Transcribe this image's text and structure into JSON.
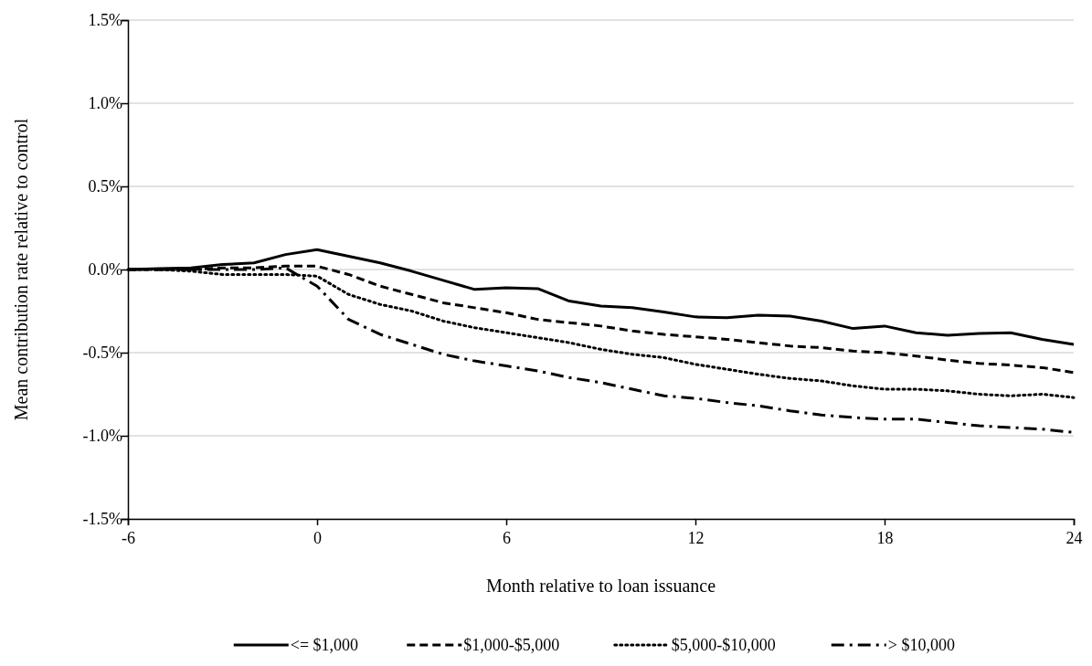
{
  "chart_data": {
    "type": "line",
    "xlabel": "Month relative to loan issuance",
    "ylabel": "Mean contribution rate relative to control",
    "x": [
      -6,
      -5,
      -4,
      -3,
      -2,
      -1,
      0,
      1,
      2,
      3,
      4,
      5,
      6,
      7,
      8,
      9,
      10,
      11,
      12,
      13,
      14,
      15,
      16,
      17,
      18,
      19,
      20,
      21,
      22,
      23,
      24
    ],
    "series": [
      {
        "name": "<= $1,000",
        "color": "#000000",
        "line_style": "solid",
        "values": [
          0,
          0.005,
          0.01,
          0.03,
          0.04,
          0.09,
          0.12,
          0.08,
          0.04,
          -0.01,
          -0.065,
          -0.12,
          -0.11,
          -0.115,
          -0.19,
          -0.22,
          -0.23,
          -0.255,
          -0.285,
          -0.29,
          -0.275,
          -0.28,
          -0.31,
          -0.355,
          -0.34,
          -0.38,
          -0.395,
          -0.385,
          -0.38,
          -0.42,
          -0.45
        ]
      },
      {
        "name": "$1,000-$5,000",
        "color": "#000000",
        "line_style": "dashed",
        "values": [
          0,
          0,
          0,
          0.01,
          0.01,
          0.02,
          0.02,
          -0.03,
          -0.1,
          -0.15,
          -0.2,
          -0.23,
          -0.26,
          -0.3,
          -0.32,
          -0.34,
          -0.37,
          -0.39,
          -0.405,
          -0.42,
          -0.44,
          -0.46,
          -0.47,
          -0.49,
          -0.5,
          -0.52,
          -0.545,
          -0.565,
          -0.575,
          -0.59,
          -0.62
        ]
      },
      {
        "name": "$5,000-$10,000",
        "color": "#000000",
        "line_style": "dotted",
        "values": [
          0,
          0,
          -0.01,
          -0.03,
          -0.03,
          -0.03,
          -0.04,
          -0.15,
          -0.21,
          -0.25,
          -0.31,
          -0.35,
          -0.38,
          -0.41,
          -0.44,
          -0.48,
          -0.51,
          -0.53,
          -0.57,
          -0.6,
          -0.63,
          -0.655,
          -0.67,
          -0.7,
          -0.72,
          -0.72,
          -0.73,
          -0.75,
          -0.76,
          -0.75,
          -0.77
        ]
      },
      {
        "name": "> $10,000",
        "color": "#000000",
        "line_style": "dashdot",
        "values": [
          0,
          0,
          0,
          0,
          0,
          0.01,
          -0.1,
          -0.3,
          -0.39,
          -0.45,
          -0.51,
          -0.55,
          -0.58,
          -0.61,
          -0.65,
          -0.68,
          -0.72,
          -0.76,
          -0.775,
          -0.8,
          -0.82,
          -0.85,
          -0.875,
          -0.89,
          -0.9,
          -0.9,
          -0.92,
          -0.94,
          -0.95,
          -0.96,
          -0.98
        ]
      }
    ],
    "xlim": [
      -6,
      24
    ],
    "xticks": [
      -6,
      0,
      6,
      12,
      18,
      24
    ],
    "ylim": [
      -1.5,
      1.5
    ],
    "yticks": [
      {
        "value": -1.5,
        "label": "-1.5%"
      },
      {
        "value": -1,
        "label": "-1.0%"
      },
      {
        "value": -0.5,
        "label": "-0.5%"
      },
      {
        "value": 0,
        "label": "0.0%"
      },
      {
        "value": 0.5,
        "label": "0.5%"
      },
      {
        "value": 1,
        "label": "1.0%"
      },
      {
        "value": 1.5,
        "label": "1.5%"
      }
    ],
    "grid": "y",
    "legend": "bottom",
    "marker": "none"
  }
}
